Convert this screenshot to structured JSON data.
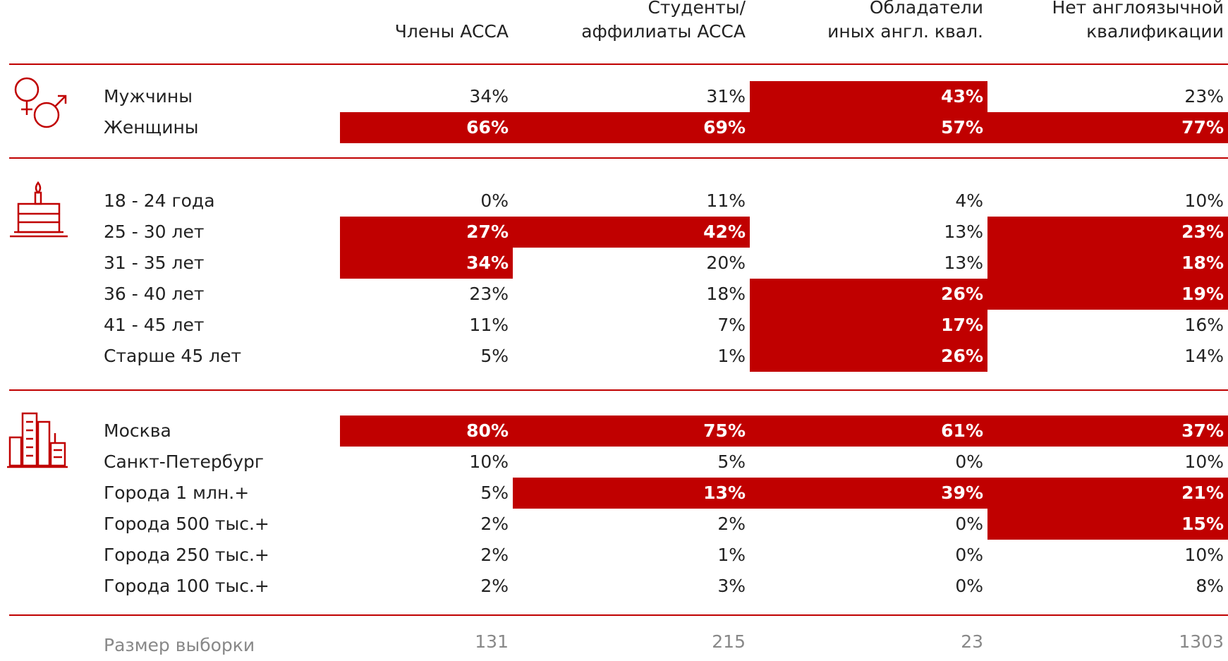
{
  "header": {
    "columns": [
      [
        "Члены ACCA"
      ],
      [
        "Студенты/",
        "аффилиаты ACCA"
      ],
      [
        "Обладатели",
        "иных англ. квал."
      ],
      [
        "Нет англоязычной",
        "квалификации"
      ]
    ]
  },
  "sections": [
    {
      "rows": [
        {
          "label": "Мужчины",
          "values": [
            "34%",
            "31%",
            "43%",
            "23%"
          ],
          "highlight": [
            false,
            false,
            true,
            false
          ]
        },
        {
          "label": "Женщины",
          "values": [
            "66%",
            "69%",
            "57%",
            "77%"
          ],
          "highlight": [
            true,
            true,
            true,
            true
          ]
        }
      ]
    },
    {
      "rows": [
        {
          "label": "18 - 24 года",
          "values": [
            "0%",
            "11%",
            "4%",
            "10%"
          ],
          "highlight": [
            false,
            false,
            false,
            false
          ]
        },
        {
          "label": "25 - 30 лет",
          "values": [
            "27%",
            "42%",
            "13%",
            "23%"
          ],
          "highlight": [
            true,
            true,
            false,
            true
          ]
        },
        {
          "label": "31 - 35 лет",
          "values": [
            "34%",
            "20%",
            "13%",
            "18%"
          ],
          "highlight": [
            true,
            false,
            false,
            true
          ]
        },
        {
          "label": "36 - 40 лет",
          "values": [
            "23%",
            "18%",
            "26%",
            "19%"
          ],
          "highlight": [
            false,
            false,
            true,
            true
          ]
        },
        {
          "label": "41 - 45 лет",
          "values": [
            "11%",
            "7%",
            "17%",
            "16%"
          ],
          "highlight": [
            false,
            false,
            true,
            false
          ]
        },
        {
          "label": "Старше 45 лет",
          "values": [
            "5%",
            "1%",
            "26%",
            "14%"
          ],
          "highlight": [
            false,
            false,
            true,
            false
          ]
        }
      ]
    },
    {
      "rows": [
        {
          "label": "Москва",
          "values": [
            "80%",
            "75%",
            "61%",
            "37%"
          ],
          "highlight": [
            true,
            true,
            true,
            true
          ]
        },
        {
          "label": "Санкт-Петербург",
          "values": [
            "10%",
            "5%",
            "0%",
            "10%"
          ],
          "highlight": [
            false,
            false,
            false,
            false
          ]
        },
        {
          "label": "Города 1 млн.+",
          "values": [
            "5%",
            "13%",
            "39%",
            "21%"
          ],
          "highlight": [
            false,
            true,
            true,
            true
          ]
        },
        {
          "label": "Города 500 тыс.+",
          "values": [
            "2%",
            "2%",
            "0%",
            "15%"
          ],
          "highlight": [
            false,
            false,
            false,
            true
          ]
        },
        {
          "label": "Города 250 тыс.+",
          "values": [
            "2%",
            "1%",
            "0%",
            "10%"
          ],
          "highlight": [
            false,
            false,
            false,
            false
          ]
        },
        {
          "label": "Города 100 тыс.+",
          "values": [
            "2%",
            "3%",
            "0%",
            "8%"
          ],
          "highlight": [
            false,
            false,
            false,
            false
          ]
        }
      ]
    }
  ],
  "sample": {
    "label": "Размер выборки",
    "values": [
      "131",
      "215",
      "23",
      "1303"
    ]
  }
}
